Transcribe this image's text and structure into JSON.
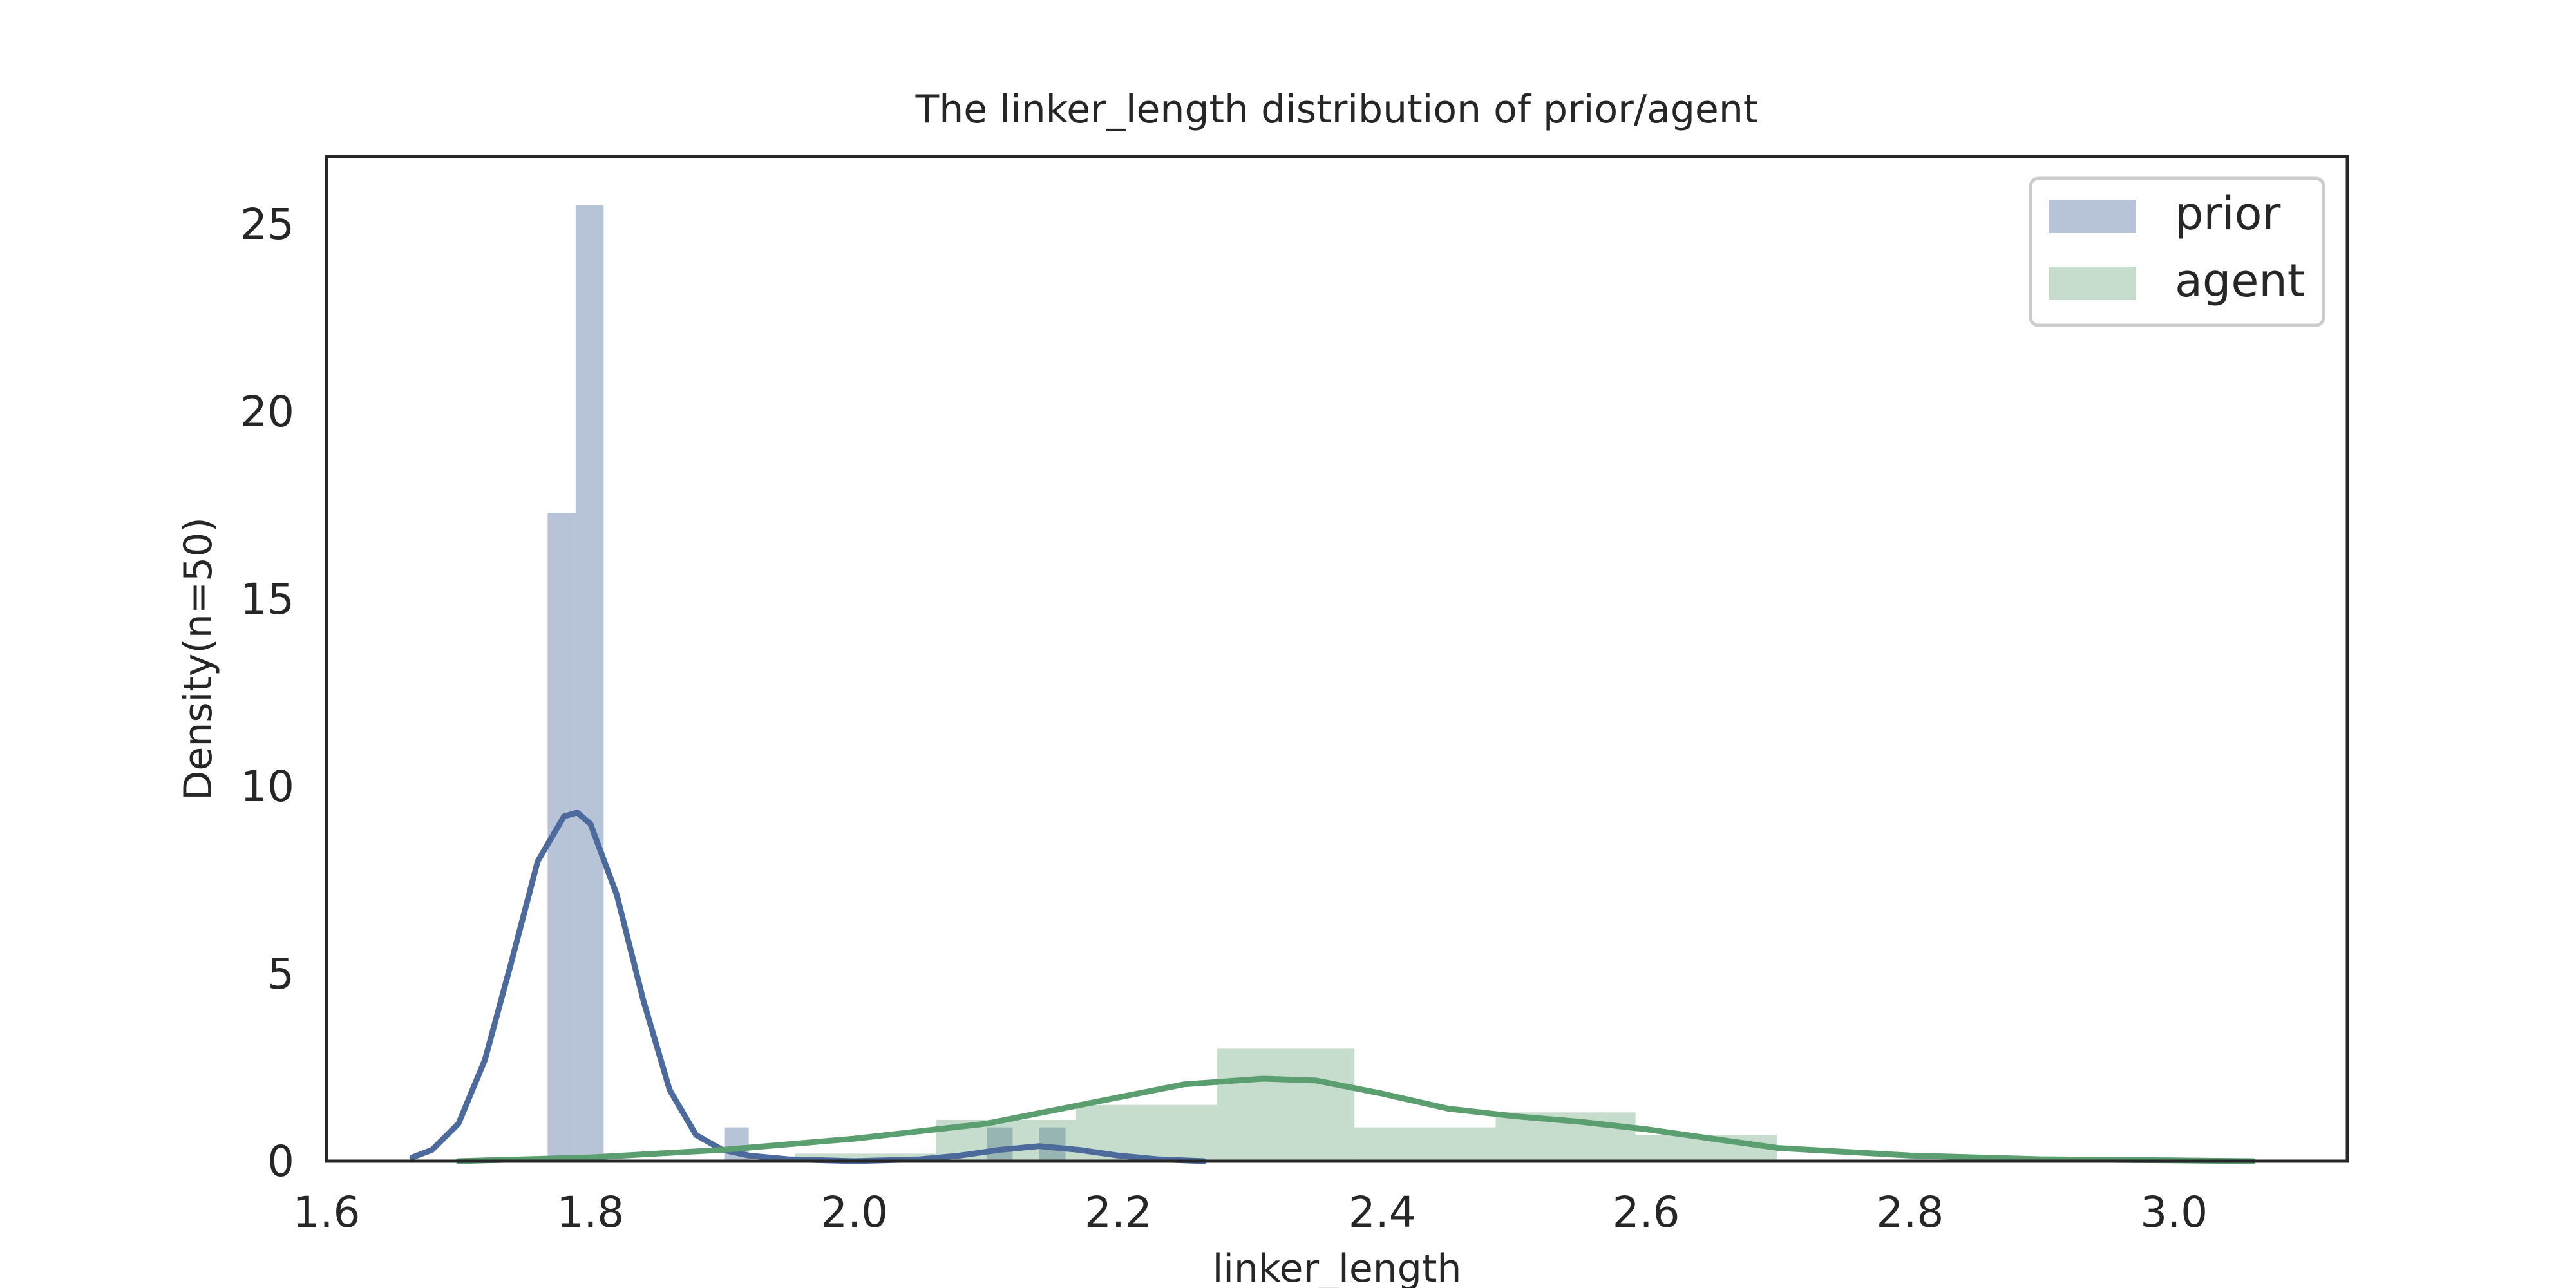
{
  "chart_data": {
    "type": "histogram",
    "title": "The linker_length distribution of prior/agent",
    "xlabel": "linker_length",
    "ylabel": "Density(n=50)",
    "xlim": [
      1.6,
      3.13
    ],
    "ylim": [
      0,
      26.5
    ],
    "xticks": [
      1.6,
      1.8,
      2.0,
      2.2,
      2.4,
      2.6,
      2.8,
      3.0
    ],
    "xtick_labels": [
      "1.6",
      "1.8",
      "2.0",
      "2.2",
      "2.4",
      "2.6",
      "2.8",
      "3.0"
    ],
    "yticks": [
      0,
      5,
      10,
      15,
      20,
      25
    ],
    "ytick_labels": [
      "0",
      "5",
      "10",
      "15",
      "20",
      "25"
    ],
    "grid": false,
    "legend_position": "top-right",
    "series": [
      {
        "name": "prior",
        "color": "#4c6a9c",
        "bar_opacity": 0.4,
        "bins": [
          {
            "x0": 1.7676,
            "x1": 1.7888,
            "density": 17.3
          },
          {
            "x0": 1.7888,
            "x1": 1.81,
            "density": 25.5
          },
          {
            "x0": 1.9019,
            "x1": 1.92,
            "density": 0.9
          },
          {
            "x0": 2.1007,
            "x1": 2.12,
            "density": 0.9
          },
          {
            "x0": 2.14,
            "x1": 2.16,
            "density": 0.9
          }
        ],
        "kde": {
          "x": [
            1.665,
            1.68,
            1.7,
            1.72,
            1.74,
            1.76,
            1.78,
            1.79,
            1.8,
            1.82,
            1.84,
            1.86,
            1.88,
            1.9,
            1.92,
            1.95,
            2.0,
            2.05,
            2.08,
            2.11,
            2.14,
            2.17,
            2.2,
            2.23,
            2.265
          ],
          "y": [
            0.1,
            0.3,
            1.0,
            2.7,
            5.3,
            8.0,
            9.2,
            9.3,
            9.0,
            7.1,
            4.3,
            1.9,
            0.7,
            0.3,
            0.15,
            0.05,
            0.0,
            0.05,
            0.15,
            0.3,
            0.4,
            0.3,
            0.15,
            0.05,
            0.0
          ]
        }
      },
      {
        "name": "agent",
        "color": "#5b9f70",
        "bar_opacity": 0.35,
        "bins": [
          {
            "x0": 1.955,
            "x1": 2.062,
            "density": 0.2
          },
          {
            "x0": 2.062,
            "x1": 2.168,
            "density": 1.1
          },
          {
            "x0": 2.168,
            "x1": 2.275,
            "density": 1.5
          },
          {
            "x0": 2.275,
            "x1": 2.379,
            "density": 3.0
          },
          {
            "x0": 2.379,
            "x1": 2.486,
            "density": 0.9
          },
          {
            "x0": 2.486,
            "x1": 2.592,
            "density": 1.3
          },
          {
            "x0": 2.592,
            "x1": 2.699,
            "density": 0.7
          }
        ],
        "kde": {
          "x": [
            1.7,
            1.8,
            1.9,
            2.0,
            2.1,
            2.2,
            2.25,
            2.31,
            2.35,
            2.4,
            2.45,
            2.5,
            2.55,
            2.6,
            2.65,
            2.7,
            2.8,
            2.9,
            3.0,
            3.06
          ],
          "y": [
            0.0,
            0.1,
            0.3,
            0.6,
            1.0,
            1.7,
            2.05,
            2.2,
            2.15,
            1.8,
            1.4,
            1.2,
            1.05,
            0.85,
            0.6,
            0.35,
            0.15,
            0.05,
            0.02,
            0.0
          ]
        }
      }
    ]
  }
}
